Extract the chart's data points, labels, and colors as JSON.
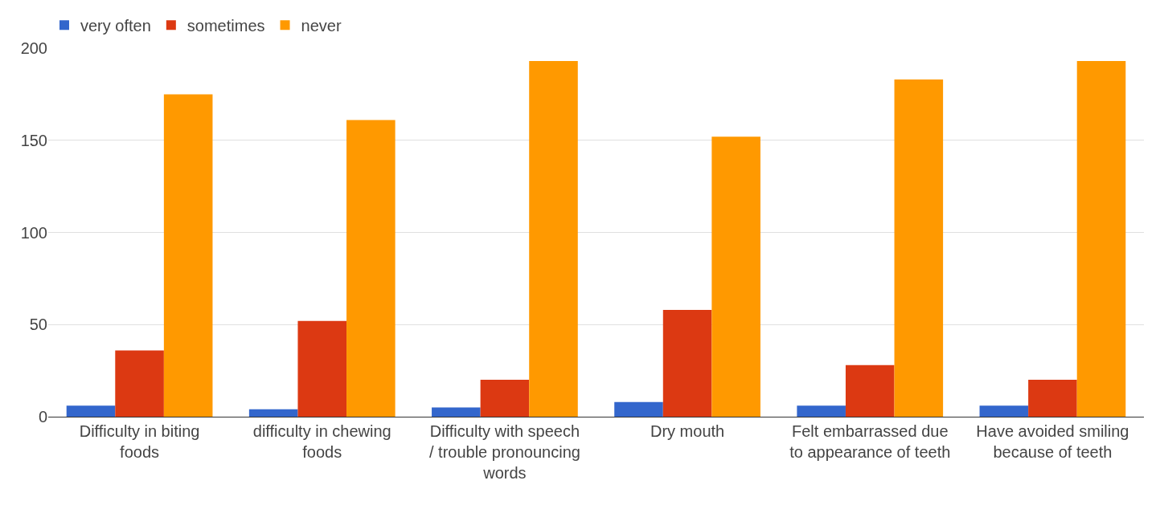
{
  "chart_data": {
    "type": "bar",
    "categories": [
      "Difficulty in biting foods",
      "difficulty in chewing foods",
      "Difficulty with speech / trouble pronouncing words",
      "Dry mouth",
      "Felt embarrassed due to appearance of teeth",
      "Have avoided smiling because of teeth"
    ],
    "series": [
      {
        "name": "very often",
        "color": "#3366cc",
        "values": [
          6,
          4,
          5,
          8,
          6,
          6
        ]
      },
      {
        "name": "sometimes",
        "color": "#dc3912",
        "values": [
          36,
          52,
          20,
          58,
          28,
          20
        ]
      },
      {
        "name": "never",
        "color": "#ff9900",
        "values": [
          175,
          161,
          193,
          152,
          183,
          193
        ]
      }
    ],
    "ylim": [
      0,
      200
    ],
    "yticks": [
      0,
      50,
      100,
      150,
      200
    ],
    "grid": "y",
    "legend": "top left"
  }
}
